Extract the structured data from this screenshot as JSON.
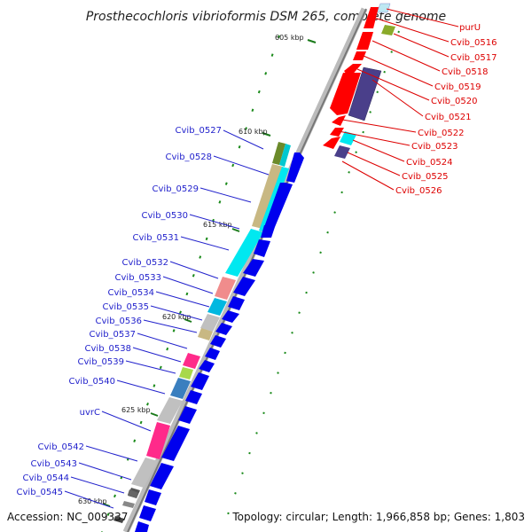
{
  "title": "Prosthecochloris vibrioformis DSM 265, complete genome",
  "footer": {
    "accession": "Accession: NC_009337",
    "summary": "Topology: circular; Length: 1,966,858 bp; Genes: 1,803"
  },
  "colors": {
    "forward_label": "#2222cc",
    "reverse_label": "#dd0000",
    "forward_gene": "#0000ee",
    "reverse_gene": "#ff0000",
    "backbone": "#999999",
    "tick": "#1a7a1a"
  },
  "scale_labels": [
    "605 kbp",
    "610 kbp",
    "615 kbp",
    "620 kbp",
    "625 kbp",
    "630 kbp"
  ],
  "reverse_labels": [
    "purU",
    "Cvib_0516",
    "Cvib_0517",
    "Cvib_0518",
    "Cvib_0519",
    "Cvib_0520",
    "Cvib_0521",
    "Cvib_0522",
    "Cvib_0523",
    "Cvib_0524",
    "Cvib_0525",
    "Cvib_0526"
  ],
  "forward_labels": [
    "Cvib_0527",
    "Cvib_0528",
    "Cvib_0529",
    "Cvib_0530",
    "Cvib_0531",
    "Cvib_0532",
    "Cvib_0533",
    "Cvib_0534",
    "Cvib_0535",
    "Cvib_0536",
    "Cvib_0537",
    "Cvib_0538",
    "Cvib_0539",
    "Cvib_0540",
    "uvrC",
    "Cvib_0542",
    "Cvib_0543",
    "Cvib_0544",
    "Cvib_0545"
  ]
}
